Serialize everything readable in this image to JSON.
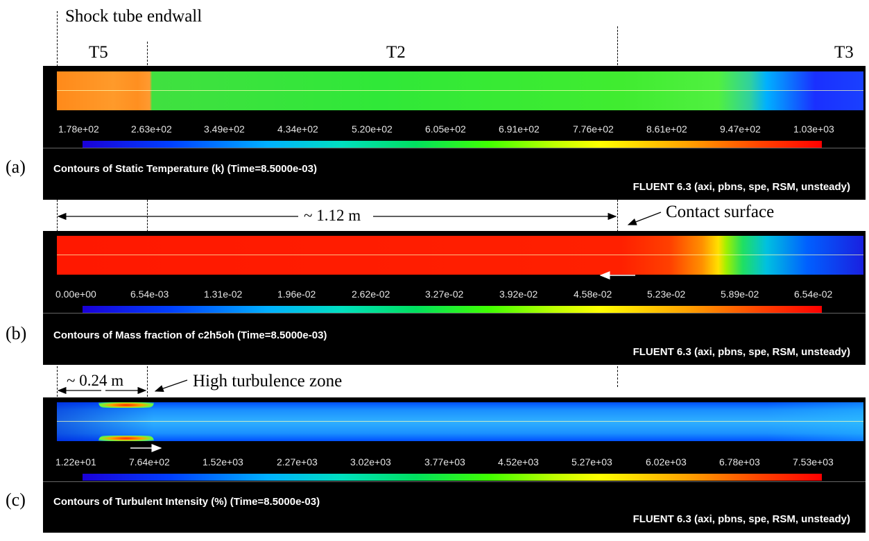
{
  "annotations": {
    "endwall": "Shock tube endwall",
    "t5": "T5",
    "t2": "T2",
    "t3": "T3",
    "length_1": "~ 1.12 m",
    "contact_surface": "Contact surface",
    "length_2": "~ 0.24 m",
    "turbulence_zone": "High turbulence zone"
  },
  "panels": [
    {
      "label": "(a)",
      "title": "Contours of Static Temperature (k)  (Time=8.5000e-03)",
      "info": "FLUENT 6.3 (axi, pbns, spe, RSM, unsteady)",
      "ticks": [
        "1.78e+02",
        "2.63e+02",
        "3.49e+02",
        "4.34e+02",
        "5.20e+02",
        "6.05e+02",
        "6.91e+02",
        "7.76e+02",
        "8.61e+02",
        "9.47e+02",
        "1.03e+03"
      ]
    },
    {
      "label": "(b)",
      "title": "Contours of Mass fraction of c2h5oh  (Time=8.5000e-03)",
      "info": "FLUENT 6.3 (axi, pbns, spe, RSM, unsteady)",
      "ticks": [
        "0.00e+00",
        "6.54e-03",
        "1.31e-02",
        "1.96e-02",
        "2.62e-02",
        "3.27e-02",
        "3.92e-02",
        "4.58e-02",
        "5.23e-02",
        "5.89e-02",
        "6.54e-02"
      ]
    },
    {
      "label": "(c)",
      "title": "Contours of Turbulent Intensity (%)  (Time=8.5000e-03)",
      "info": "FLUENT 6.3 (axi, pbns, spe, RSM, unsteady)",
      "ticks": [
        "1.22e+01",
        "7.64e+02",
        "1.52e+03",
        "2.27e+03",
        "3.02e+03",
        "3.77e+03",
        "4.52e+03",
        "5.27e+03",
        "6.02e+03",
        "6.78e+03",
        "7.53e+03"
      ]
    }
  ],
  "colors": {
    "background": "#000000",
    "t5_region": "#ff8c1a",
    "t2_region": "#33e833",
    "t3_region": "#1a40ff",
    "ethanol": "#ff1a00",
    "turbulence_base": "#1a90ff"
  }
}
